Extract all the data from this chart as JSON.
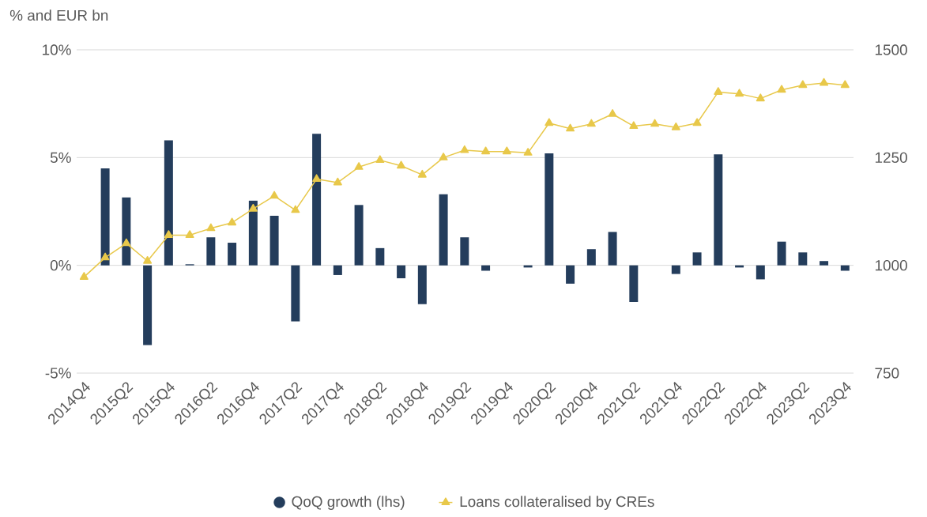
{
  "chart_data": {
    "type": "bar",
    "subtitle": "% and EUR bn",
    "categories": [
      "2014Q4",
      null,
      "2015Q2",
      null,
      "2015Q4",
      null,
      "2016Q2",
      null,
      "2016Q4",
      null,
      "2017Q2",
      null,
      "2017Q4",
      null,
      "2018Q2",
      null,
      "2018Q4",
      null,
      "2019Q2",
      null,
      "2019Q4",
      null,
      "2020Q2",
      null,
      "2020Q4",
      null,
      "2021Q2",
      null,
      "2021Q4",
      null,
      "2022Q2",
      null,
      "2022Q4",
      null,
      "2023Q2",
      null,
      "2023Q4"
    ],
    "series": [
      {
        "name": "QoQ growth (lhs)",
        "color": "#243d5c",
        "values": [
          null,
          4.5,
          3.15,
          -3.7,
          5.8,
          0.05,
          1.3,
          1.05,
          3.0,
          2.3,
          -2.6,
          6.1,
          -0.45,
          2.8,
          0.8,
          -0.6,
          -1.8,
          3.3,
          1.3,
          -0.25,
          0,
          -0.1,
          5.2,
          -0.85,
          0.75,
          1.55,
          -1.7,
          0,
          -0.4,
          0.6,
          5.15,
          -0.1,
          -0.65,
          1.1,
          0.6,
          0.2,
          -0.25
        ]
      },
      {
        "name": "Loans collateralised by CREs",
        "type": "line",
        "axis": "y2",
        "marker": "triangle",
        "color": "#e8c84a",
        "values": [
          973,
          1018,
          1051,
          1010,
          1070,
          1070,
          1086,
          1099,
          1131,
          1161,
          1128,
          1200,
          1192,
          1228,
          1244,
          1231,
          1210,
          1250,
          1267,
          1264,
          1264,
          1261,
          1330,
          1317,
          1328,
          1351,
          1323,
          1328,
          1320,
          1330,
          1402,
          1398,
          1387,
          1407,
          1418,
          1423,
          1418
        ]
      }
    ],
    "ylim": [
      -5,
      10
    ],
    "yticks": [
      {
        "value": -5,
        "label": "-5%"
      },
      {
        "value": 0,
        "label": "0%"
      },
      {
        "value": 5,
        "label": "5%"
      },
      {
        "value": 10,
        "label": "10%"
      }
    ],
    "y2lim": [
      750,
      1500
    ],
    "y2ticks": [
      750,
      1000,
      1250,
      1500
    ],
    "grid": "y",
    "legend": "bottom"
  }
}
